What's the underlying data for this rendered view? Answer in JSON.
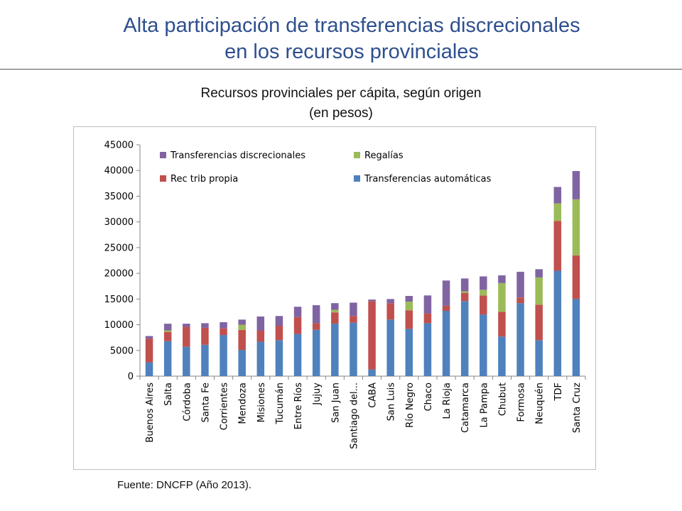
{
  "title": {
    "line1": "Alta participación de transferencias discrecionales",
    "line2": "en los recursos provinciales"
  },
  "chart_title": {
    "line1": "Recursos provinciales per cápita, según origen",
    "line2": "(en pesos)"
  },
  "source": "Fuente: DNCFP (Año 2013).",
  "chart_data": {
    "type": "bar",
    "stacked": true,
    "title": "Recursos provinciales per cápita, según origen (en pesos)",
    "xlabel": "",
    "ylabel": "",
    "ylim": [
      0,
      45000
    ],
    "yticks": [
      0,
      5000,
      10000,
      15000,
      20000,
      25000,
      30000,
      35000,
      40000,
      45000
    ],
    "grid": false,
    "legend_position": "top",
    "categories": [
      "Buenos Aires",
      "Salta",
      "Córdoba",
      "Santa Fe",
      "Corrientes",
      "Mendoza",
      "Misiones",
      "Tucumán",
      "Entre Ríos",
      "Jujuy",
      "San Juan",
      "Santiago del...",
      "CABA",
      "San Luis",
      "Río Negro",
      "Chaco",
      "La Rioja",
      "Catamarca",
      "La Pampa",
      "Chubut",
      "Formosa",
      "Neuquén",
      "TDF",
      "Santa Cruz"
    ],
    "series": [
      {
        "name": "Transferencias automáticas",
        "color": "#4f81bd",
        "values": [
          2700,
          6800,
          5700,
          6100,
          8000,
          5100,
          6700,
          7000,
          8200,
          9000,
          10200,
          10400,
          1300,
          11000,
          9200,
          10300,
          12700,
          14600,
          12000,
          7700,
          14200,
          7000,
          20500,
          15000
        ]
      },
      {
        "name": "Rec trib propia",
        "color": "#c0504d",
        "values": [
          4600,
          1800,
          3900,
          3300,
          1300,
          3900,
          2200,
          2800,
          3300,
          1300,
          2200,
          1300,
          13300,
          3200,
          3600,
          1900,
          1000,
          1600,
          3700,
          4800,
          1100,
          6900,
          9700,
          8500
        ]
      },
      {
        "name": "Regalías",
        "color": "#9bbb59",
        "values": [
          0,
          300,
          0,
          0,
          0,
          1000,
          0,
          0,
          0,
          0,
          500,
          0,
          0,
          0,
          1700,
          0,
          0,
          300,
          1100,
          5600,
          0,
          5300,
          3400,
          10900
        ]
      },
      {
        "name": "Transferencias discrecionales",
        "color": "#8064a2",
        "values": [
          500,
          1300,
          600,
          900,
          1200,
          1000,
          2700,
          1900,
          2000,
          3500,
          1300,
          2600,
          300,
          800,
          1100,
          3500,
          4900,
          2500,
          2600,
          1500,
          5000,
          1600,
          3200,
          5500
        ]
      }
    ],
    "legend_order": [
      "Transferencias discrecionales",
      "Regalías",
      "Rec trib propia",
      "Transferencias automáticas"
    ]
  }
}
